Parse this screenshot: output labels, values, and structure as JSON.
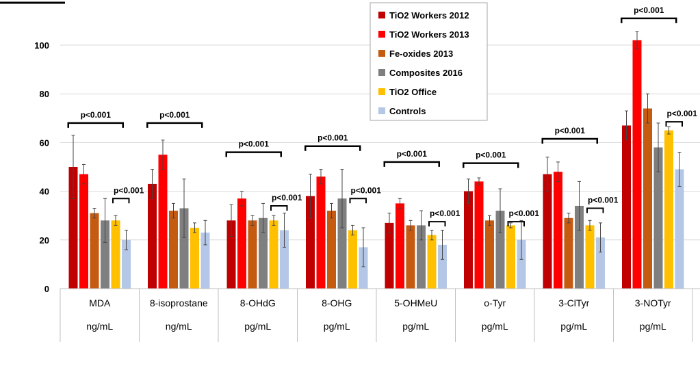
{
  "chart_data": {
    "type": "bar",
    "title": "",
    "xlabel": "",
    "ylabel": "",
    "ylim": [
      0,
      110
    ],
    "yticks": [
      "0",
      "20",
      "40",
      "60",
      "80",
      "100"
    ],
    "ytick_values": [
      0,
      20,
      40,
      60,
      80,
      100
    ],
    "grid": true,
    "legend_position": "top-center",
    "categories": [
      "MDA",
      "8-isoprostane",
      "8-OHdG",
      "8-OHG",
      "5-OHMeU",
      "o-Tyr",
      "3-ClTyr",
      "3-NOTyr"
    ],
    "units": [
      "ng/mL",
      "ng/mL",
      "pg/mL",
      "pg/mL",
      "pg/mL",
      "pg/mL",
      "pg/mL",
      "pg/mL"
    ],
    "series": [
      {
        "name": "TiO2 Workers 2012",
        "color": "#C00000",
        "values": [
          50,
          43,
          28,
          38,
          27,
          40,
          47,
          67
        ],
        "errors": [
          13,
          6,
          6.5,
          9,
          4,
          5,
          7,
          6
        ]
      },
      {
        "name": "TiO2 Workers 2013",
        "color": "#FF0000",
        "values": [
          47,
          55,
          37,
          46,
          35,
          44,
          48,
          102
        ],
        "errors": [
          4,
          6,
          3,
          3,
          2,
          1.5,
          4,
          3.5
        ]
      },
      {
        "name": "Fe-oxides  2013",
        "color": "#C55A11",
        "values": [
          31,
          32,
          28,
          32,
          26,
          28,
          29,
          74
        ],
        "errors": [
          2,
          3,
          2,
          3,
          2,
          2,
          2,
          6
        ]
      },
      {
        "name": "Composites 2016",
        "color": "#7F7F7F",
        "values": [
          28,
          33,
          29,
          37,
          26,
          32,
          34,
          58
        ],
        "errors": [
          9,
          12,
          6,
          12,
          6,
          9,
          10,
          10
        ]
      },
      {
        "name": "TiO2 Office",
        "color": "#FFC000",
        "values": [
          28,
          25,
          28,
          24,
          22,
          26,
          26,
          65
        ],
        "errors": [
          2,
          2,
          2,
          2,
          2,
          1,
          2,
          1.5
        ]
      },
      {
        "name": "Controls",
        "color": "#B4C7E7",
        "values": [
          20,
          23,
          24,
          17,
          18,
          20,
          21,
          49
        ],
        "errors": [
          4,
          5,
          7,
          8,
          6,
          8,
          6,
          7
        ]
      }
    ],
    "annotations": [
      {
        "text": "p<0.001",
        "category": 0,
        "level": 68,
        "type": "main"
      },
      {
        "text": "p<0.001",
        "category": 0,
        "level": 37,
        "type": "pair"
      },
      {
        "text": "p<0.001",
        "category": 1,
        "level": 68,
        "type": "main"
      },
      {
        "text": "p<0.001",
        "category": 2,
        "level": 56,
        "type": "main"
      },
      {
        "text": "p<0.001",
        "category": 2,
        "level": 34,
        "type": "pair"
      },
      {
        "text": "p<0.001",
        "category": 3,
        "level": 58.5,
        "type": "main"
      },
      {
        "text": "p<0.001",
        "category": 3,
        "level": 37,
        "type": "pair"
      },
      {
        "text": "p<0.001",
        "category": 4,
        "level": 52,
        "type": "main"
      },
      {
        "text": "p<0.001",
        "category": 4,
        "level": 27.5,
        "type": "pair"
      },
      {
        "text": "p<0.001",
        "category": 5,
        "level": 51.5,
        "type": "main"
      },
      {
        "text": "p<0.001",
        "category": 5,
        "level": 27.5,
        "type": "pair"
      },
      {
        "text": "p<0.001",
        "category": 6,
        "level": 61.5,
        "type": "main"
      },
      {
        "text": "p<0.001",
        "category": 6,
        "level": 33,
        "type": "pair"
      },
      {
        "text": "p<0.001",
        "category": 7,
        "level": 111,
        "type": "main"
      },
      {
        "text": "p<0.001",
        "category": 7,
        "level": 68.5,
        "type": "pair"
      }
    ]
  }
}
